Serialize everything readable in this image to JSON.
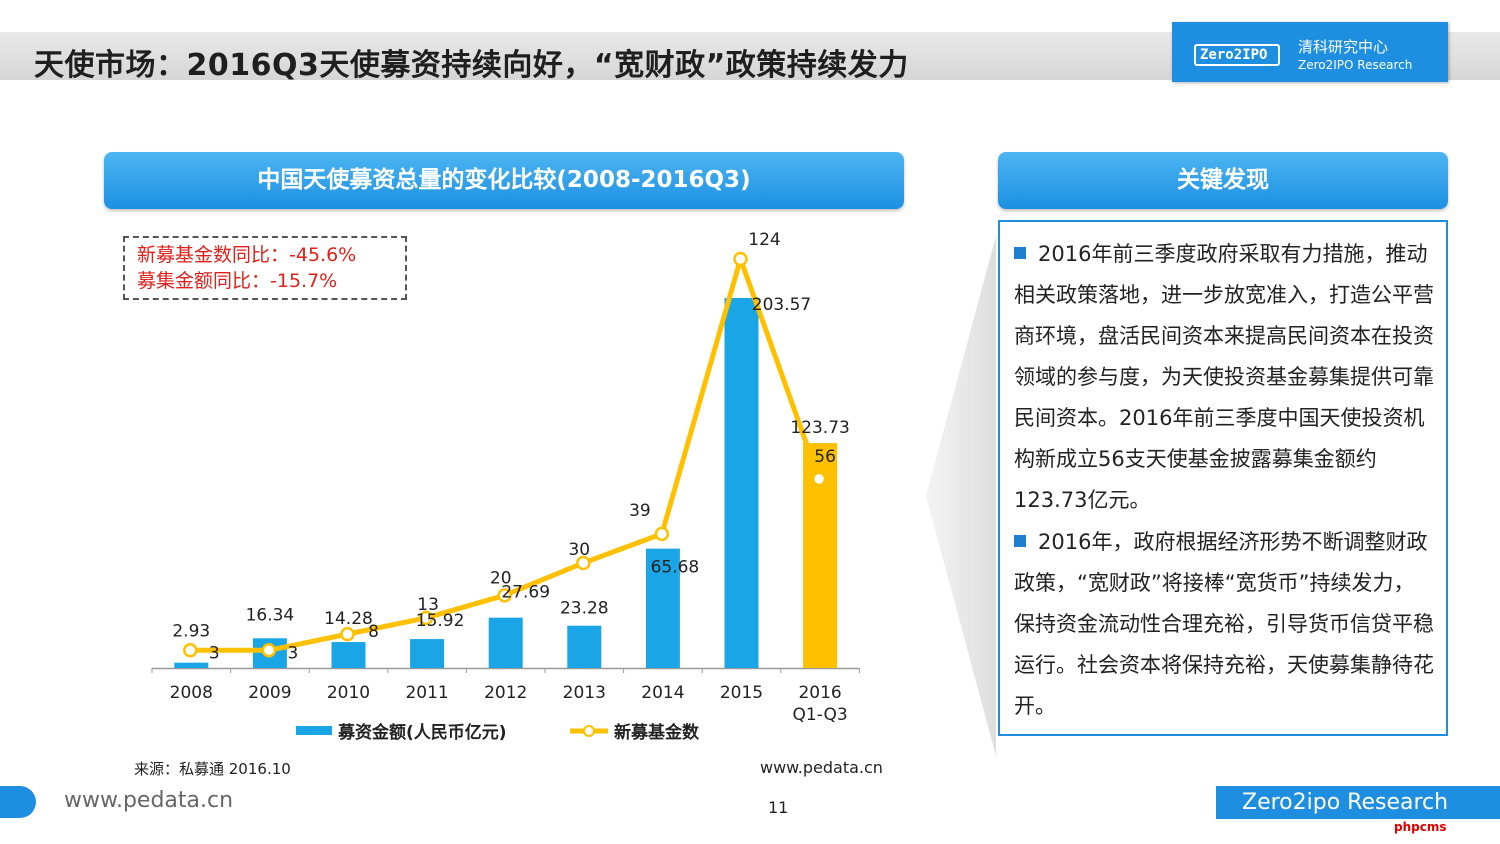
{
  "header": {
    "title": "天使市场：2016Q3天使募资持续向好，“宽财政”政策持续发力",
    "logo_mark": "Zero2IPO",
    "logo_cn": "清科研究中心",
    "logo_en": "Zero2IPO Research"
  },
  "chart_panel": {
    "title": "中国天使募资总量的变化比较(2008-2016Q3)",
    "note_line1": "新募基金数同比：-45.6%",
    "note_line2": "募集金额同比：-15.7%",
    "source": "来源：私募通 2016.10",
    "source_url": "www.pedata.cn"
  },
  "chart_data": {
    "type": "bar",
    "title": "中国天使募资总量的变化比较(2008-2016Q3)",
    "categories": [
      "2008",
      "2009",
      "2010",
      "2011",
      "2012",
      "2013",
      "2014",
      "2015",
      "2016 Q1-Q3"
    ],
    "series": [
      {
        "name": "募资金额(人民币亿元)",
        "type": "bar",
        "color": "#1aa5e6",
        "highlight_color": "#ffc000",
        "values": [
          2.93,
          16.34,
          14.28,
          15.92,
          27.69,
          23.28,
          65.68,
          203.57,
          123.73
        ]
      },
      {
        "name": "新募基金数",
        "type": "line",
        "color": "#ffc000",
        "values": [
          3,
          3,
          8,
          13,
          20,
          30,
          39,
          124,
          56
        ]
      }
    ],
    "legend_position": "bottom",
    "grid": false
  },
  "findings": {
    "title": "关键发现",
    "para1": "2016年前三季度政府采取有力措施，推动相关政策落地，进一步放宽准入，打造公平营商环境，盘活民间资本来提高民间资本在投资领域的参与度，为天使投资基金募集提供可靠民间资本。2016年前三季度中国天使投资机构新成立56支天使基金披露募集金额约123.73亿元。",
    "para2": "2016年，政府根据经济形势不断调整财政政策，“宽财政”将接棒“宽货币”持续发力，保持资金流动性合理充裕，引导货币信贷平稳运行。社会资本将保持充裕，天使募集静待花开。"
  },
  "footer": {
    "url": "www.pedata.cn",
    "page_number": "11",
    "brand": "Zero2ipo Research",
    "watermark": "phpcms"
  }
}
